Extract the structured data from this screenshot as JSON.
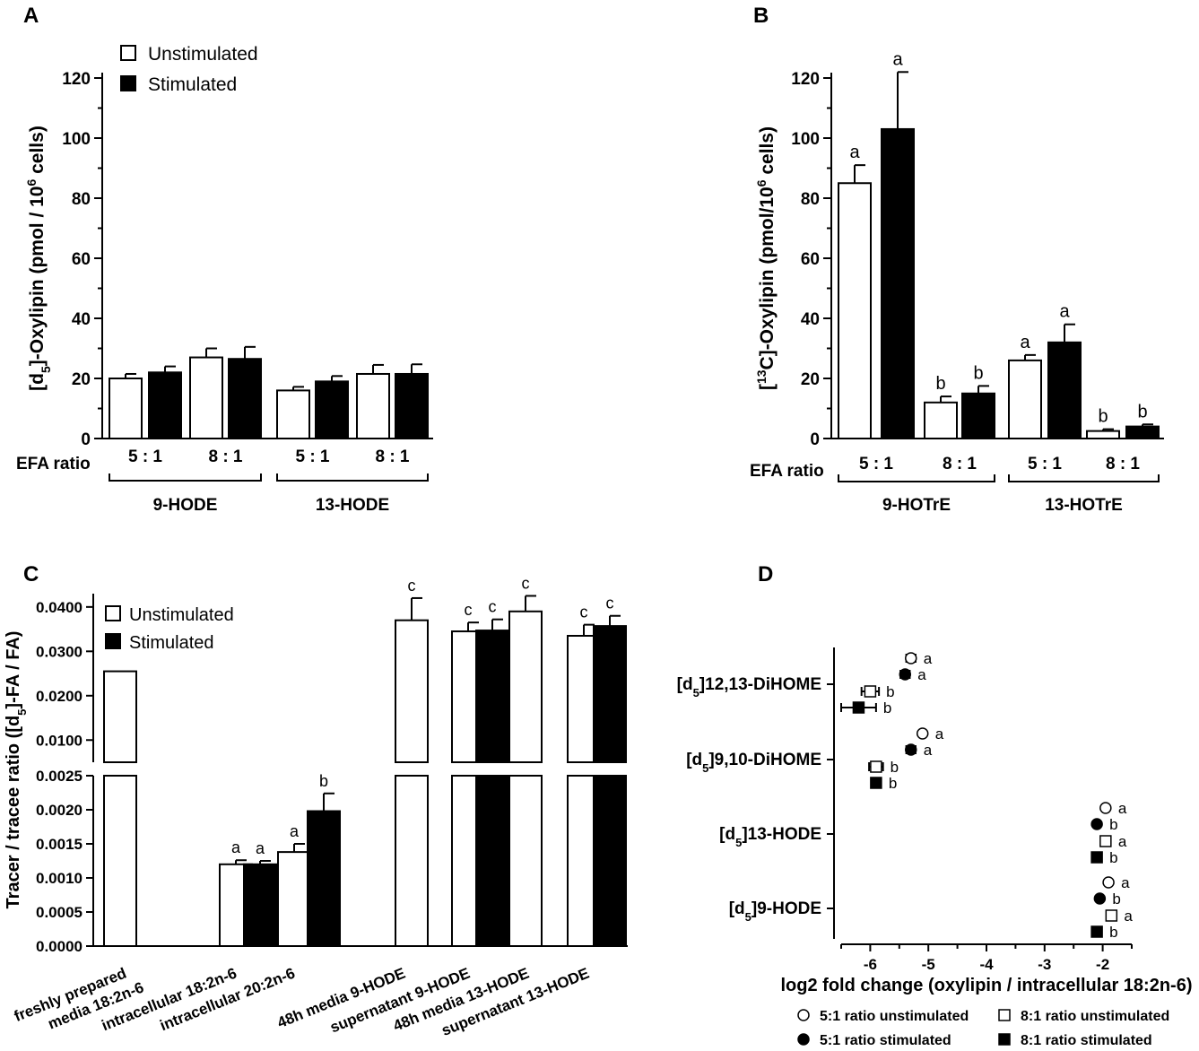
{
  "chart_data": [
    {
      "panel": "A",
      "type": "bar",
      "ylabel": "[d5]-Oxylipin (pmol / 10^6 cells)",
      "ylabel_parts": {
        "pre": "[d",
        "sub": "5",
        "mid": "]-Oxylipin (pmol / 10",
        "sup": "6",
        "post": " cells)"
      },
      "ylim": [
        0,
        120
      ],
      "yticks": [
        "0",
        "20",
        "40",
        "60",
        "80",
        "100",
        "120"
      ],
      "ratio_label": "EFA ratio",
      "legend": [
        "Unstimulated",
        "Stimulated"
      ],
      "groups": [
        {
          "name": "9-HODE",
          "ratios": [
            "5 : 1",
            "8 : 1"
          ],
          "bars": [
            {
              "ratio": "5 : 1",
              "series": "Unstimulated",
              "value": 20,
              "err": 1.5,
              "letter": ""
            },
            {
              "ratio": "5 : 1",
              "series": "Stimulated",
              "value": 22,
              "err": 2,
              "letter": ""
            },
            {
              "ratio": "8 : 1",
              "series": "Unstimulated",
              "value": 27,
              "err": 3,
              "letter": ""
            },
            {
              "ratio": "8 : 1",
              "series": "Stimulated",
              "value": 26.5,
              "err": 4,
              "letter": ""
            }
          ]
        },
        {
          "name": "13-HODE",
          "ratios": [
            "5 : 1",
            "8 : 1"
          ],
          "bars": [
            {
              "ratio": "5 : 1",
              "series": "Unstimulated",
              "value": 16,
              "err": 1.2,
              "letter": ""
            },
            {
              "ratio": "5 : 1",
              "series": "Stimulated",
              "value": 19,
              "err": 1.8,
              "letter": ""
            },
            {
              "ratio": "8 : 1",
              "series": "Unstimulated",
              "value": 21.5,
              "err": 3,
              "letter": ""
            },
            {
              "ratio": "8 : 1",
              "series": "Stimulated",
              "value": 21.5,
              "err": 3.2,
              "letter": ""
            }
          ]
        }
      ]
    },
    {
      "panel": "B",
      "type": "bar",
      "ylabel": "[13C]-Oxylipin (pmol/10^6 cells)",
      "ylabel_parts": {
        "pre": "[",
        "sup1": "13",
        "mid": "C]-Oxylipin (pmol/10",
        "sup": "6",
        "post": " cells)"
      },
      "ylim": [
        0,
        120
      ],
      "yticks": [
        "0",
        "20",
        "40",
        "60",
        "80",
        "100",
        "120"
      ],
      "ratio_label": "EFA ratio",
      "groups": [
        {
          "name": "9-HOTrE",
          "ratios": [
            "5 : 1",
            "8 : 1"
          ],
          "bars": [
            {
              "ratio": "5 : 1",
              "series": "Unstimulated",
              "value": 85,
              "err": 6,
              "letter": "a"
            },
            {
              "ratio": "5 : 1",
              "series": "Stimulated",
              "value": 103,
              "err": 19,
              "letter": "a"
            },
            {
              "ratio": "8 : 1",
              "series": "Unstimulated",
              "value": 12,
              "err": 2,
              "letter": "b"
            },
            {
              "ratio": "8 : 1",
              "series": "Stimulated",
              "value": 15,
              "err": 2.5,
              "letter": "b"
            }
          ]
        },
        {
          "name": "13-HOTrE",
          "ratios": [
            "5 : 1",
            "8 : 1"
          ],
          "bars": [
            {
              "ratio": "5 : 1",
              "series": "Unstimulated",
              "value": 26,
              "err": 1.8,
              "letter": "a"
            },
            {
              "ratio": "5 : 1",
              "series": "Stimulated",
              "value": 32,
              "err": 6,
              "letter": "a"
            },
            {
              "ratio": "8 : 1",
              "series": "Unstimulated",
              "value": 2.5,
              "err": 0.6,
              "letter": "b"
            },
            {
              "ratio": "8 : 1",
              "series": "Stimulated",
              "value": 4,
              "err": 0.7,
              "letter": "b"
            }
          ]
        }
      ]
    },
    {
      "panel": "C",
      "type": "bar",
      "ylabel": "Tracer / tracee ratio ([d5]-FA / FA)",
      "ylabel_parts": {
        "pre": "Tracer / tracee ratio ([d",
        "sub": "5",
        "post": "]-FA / FA)"
      },
      "legend": [
        "Unstimulated",
        "Stimulated"
      ],
      "lower_ylim": [
        0,
        0.0025
      ],
      "lower_yticks": [
        "0.0000",
        "0.0005",
        "0.0010",
        "0.0015",
        "0.0020",
        "0.0025"
      ],
      "upper_ylim": [
        0.005,
        0.043
      ],
      "upper_yticks": [
        "0.0100",
        "0.0200",
        "0.0300",
        "0.0400"
      ],
      "categories": [
        "freshly prepared media 18:2n-6",
        "intracellular 18:2n-6",
        "intracellular 20:2n-6",
        "48h media 9-HODE",
        "supernatant 9-HODE",
        "48h media 13-HODE",
        "supernatant 13-HODE"
      ],
      "category_lines": [
        [
          "freshly prepared",
          "media 18:2n-6"
        ],
        [
          "intracellular 18:2n-6"
        ],
        [
          "intracellular 20:2n-6"
        ],
        [
          "48h media 9-HODE"
        ],
        [
          "supernatant 9-HODE"
        ],
        [
          "48h media 13-HODE"
        ],
        [
          "supernatant 13-HODE"
        ]
      ],
      "bars": [
        {
          "category": 0,
          "series": "Unstimulated",
          "value": 0.0255,
          "err": 0,
          "letter": ""
        },
        {
          "category": 1,
          "series": "Unstimulated",
          "value": 0.0012,
          "err": 6e-05,
          "letter": "a"
        },
        {
          "category": 1,
          "series": "Stimulated",
          "value": 0.0012,
          "err": 5e-05,
          "letter": "a"
        },
        {
          "category": 2,
          "series": "Unstimulated",
          "value": 0.00138,
          "err": 0.00012,
          "letter": "a"
        },
        {
          "category": 2,
          "series": "Stimulated",
          "value": 0.00198,
          "err": 0.00026,
          "letter": "b"
        },
        {
          "category": 3,
          "series": "Unstimulated",
          "value": 0.037,
          "err": 0.005,
          "letter": "c"
        },
        {
          "category": 4,
          "series": "Unstimulated",
          "value": 0.0345,
          "err": 0.002,
          "letter": "c"
        },
        {
          "category": 4,
          "series": "Stimulated",
          "value": 0.0347,
          "err": 0.0025,
          "letter": "c"
        },
        {
          "category": 5,
          "series": "Unstimulated",
          "value": 0.039,
          "err": 0.0035,
          "letter": "c"
        },
        {
          "category": 6,
          "series": "Unstimulated",
          "value": 0.0335,
          "err": 0.0025,
          "letter": "c"
        },
        {
          "category": 6,
          "series": "Stimulated",
          "value": 0.0357,
          "err": 0.0023,
          "letter": "c"
        }
      ]
    },
    {
      "panel": "D",
      "type": "scatter",
      "xlabel": "log2 fold change (oxylipin / intracellular 18:2n-6)",
      "xlim": [
        -6.5,
        -1.5
      ],
      "xticks": [
        "-6",
        "-5",
        "-4",
        "-3",
        "-2"
      ],
      "legend": [
        "5:1 ratio unstimulated",
        "8:1 ratio unstimulated",
        "5:1 ratio stimulated",
        "8:1 ratio stimulated"
      ],
      "rows": [
        {
          "label_pre": "[d",
          "label_sub": "5",
          "label_post": "]12,13-DiHOME",
          "points": [
            {
              "series": "5:1 ratio unstimulated",
              "x": -5.3,
              "err": 0.08,
              "letter": "a"
            },
            {
              "series": "5:1 ratio stimulated",
              "x": -5.4,
              "err": 0.08,
              "letter": "a"
            },
            {
              "series": "8:1 ratio unstimulated",
              "x": -6.0,
              "err": 0.15,
              "letter": "b"
            },
            {
              "series": "8:1 ratio stimulated",
              "x": -6.2,
              "err": 0.3,
              "letter": "b"
            }
          ]
        },
        {
          "label_pre": "[d",
          "label_sub": "5",
          "label_post": "]9,10-DiHOME",
          "points": [
            {
              "series": "5:1 ratio unstimulated",
              "x": -5.1,
              "err": 0,
              "letter": "a"
            },
            {
              "series": "5:1 ratio stimulated",
              "x": -5.3,
              "err": 0.08,
              "letter": "a"
            },
            {
              "series": "8:1 ratio unstimulated",
              "x": -5.9,
              "err": 0.12,
              "letter": "b"
            },
            {
              "series": "8:1 ratio stimulated",
              "x": -5.9,
              "err": 0,
              "letter": "b"
            }
          ]
        },
        {
          "label_pre": "[d",
          "label_sub": "5",
          "label_post": "]13-HODE",
          "points": [
            {
              "series": "5:1 ratio unstimulated",
              "x": -1.95,
              "err": 0,
              "letter": "a"
            },
            {
              "series": "5:1 ratio stimulated",
              "x": -2.1,
              "err": 0,
              "letter": "b"
            },
            {
              "series": "8:1 ratio unstimulated",
              "x": -1.95,
              "err": 0,
              "letter": "a"
            },
            {
              "series": "8:1 ratio stimulated",
              "x": -2.1,
              "err": 0,
              "letter": "b"
            }
          ]
        },
        {
          "label_pre": "[d",
          "label_sub": "5",
          "label_post": "]9-HODE",
          "points": [
            {
              "series": "5:1 ratio unstimulated",
              "x": -1.9,
              "err": 0,
              "letter": "a"
            },
            {
              "series": "5:1 ratio stimulated",
              "x": -2.05,
              "err": 0,
              "letter": "b"
            },
            {
              "series": "8:1 ratio unstimulated",
              "x": -1.85,
              "err": 0,
              "letter": "a"
            },
            {
              "series": "8:1 ratio stimulated",
              "x": -2.1,
              "err": 0,
              "letter": "b"
            }
          ]
        }
      ]
    }
  ],
  "panel_labels": [
    "A",
    "B",
    "C",
    "D"
  ],
  "colors": {
    "ink": "#000000",
    "paper": "#ffffff"
  }
}
